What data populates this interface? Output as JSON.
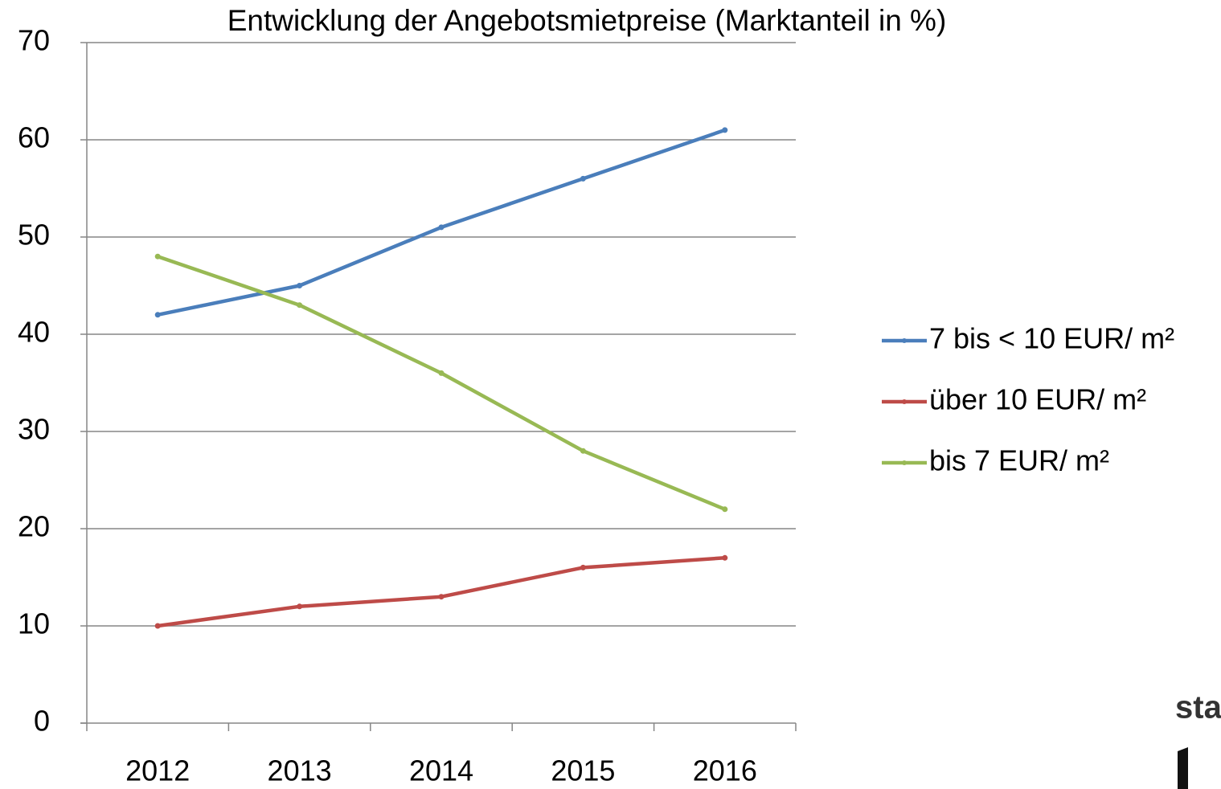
{
  "chart_data": {
    "type": "line",
    "title": "Entwicklung der Angebotsmietpreise (Marktanteil in %)",
    "categories": [
      "2012",
      "2013",
      "2014",
      "2015",
      "2016"
    ],
    "series": [
      {
        "name": "7 bis < 10 EUR/ m²",
        "color": "#4a7ebb",
        "values": [
          42,
          45,
          51,
          56,
          61
        ]
      },
      {
        "name": "über 10 EUR/ m²",
        "color": "#be4b48",
        "values": [
          10,
          12,
          13,
          16,
          17
        ]
      },
      {
        "name": "bis 7 EUR/ m²",
        "color": "#98b954",
        "values": [
          48,
          43,
          36,
          28,
          22
        ]
      }
    ],
    "ylim": [
      0,
      70
    ],
    "yticks": [
      0,
      10,
      20,
      30,
      40,
      50,
      60,
      70
    ],
    "grid": true,
    "legend": "right",
    "watermark": "sta"
  }
}
